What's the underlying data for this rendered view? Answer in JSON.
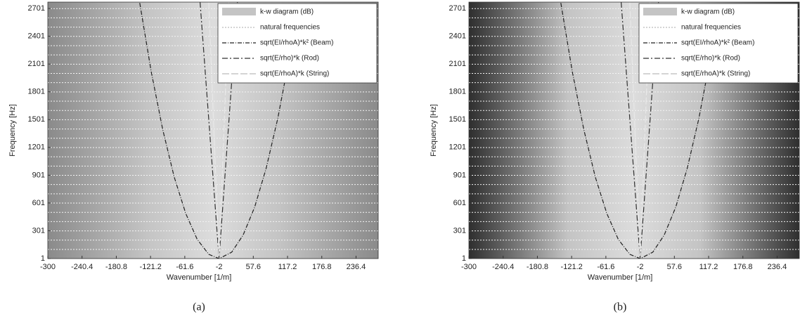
{
  "chart_data": [
    {
      "type": "kw",
      "caption": "(a)",
      "xlabel": "Wavenumber [1/m]",
      "ylabel": "Frequency [Hz]",
      "xlim": [
        -300,
        275
      ],
      "xticks": [
        -300,
        -240.4,
        -180.8,
        -121.2,
        -61.6,
        -2,
        57.6,
        117.2,
        176.8,
        236.4
      ],
      "ylim": [
        1,
        2770
      ],
      "yticks": [
        1,
        301,
        601,
        901,
        1201,
        1501,
        1801,
        2101,
        2401,
        2701
      ],
      "heatmap": {
        "name": "k-w diagram (dB)",
        "color": "#c4c4c4",
        "edge_color": "#8a8a8a"
      },
      "series": [
        {
          "name": "natural frequencies",
          "color": "#f4f4f4",
          "dash": "2 2",
          "values": [
            100,
            200,
            300,
            400,
            500,
            600,
            700,
            800,
            900,
            1000,
            1100,
            1200,
            1300,
            1400,
            1500,
            1600,
            1700,
            1800,
            1900,
            2000,
            2100,
            2200,
            2300,
            2400,
            2500,
            2600,
            2700
          ]
        },
        {
          "name": "sqrt(EI/rhoA)*k² (Beam)",
          "color": "#202020",
          "dash": "6 2 1 2",
          "x": [
            -140,
            -120,
            -100,
            -80,
            -60,
            -40,
            -20,
            -2,
            20,
            40,
            60,
            80,
            100,
            120,
            136
          ],
          "values": [
            2761,
            2019,
            1393,
            882,
            488,
            209,
            47,
            0,
            70,
            256,
            557,
            975,
            1509,
            2158,
            2761
          ]
        },
        {
          "name": "sqrt(E/rho)*k (Rod)",
          "color": "#303030",
          "dash": "8 3 2 3",
          "x": [
            -35,
            -2,
            30
          ],
          "values": [
            2770,
            0,
            2770
          ]
        },
        {
          "name": "sqrt(E/rhoA)*k (String)",
          "color": "#e8e8e8",
          "dash": "10 3",
          "x": [
            -20,
            -2,
            15
          ],
          "values": [
            2770,
            0,
            2770
          ]
        }
      ]
    },
    {
      "type": "kw",
      "caption": "(b)",
      "xlabel": "Wavenumber [1/m]",
      "ylabel": "Frequency [Hz]",
      "xlim": [
        -300,
        275
      ],
      "xticks": [
        -300,
        -240.4,
        -180.8,
        -121.2,
        -61.6,
        -2,
        57.6,
        117.2,
        176.8,
        236.4
      ],
      "ylim": [
        1,
        2770
      ],
      "yticks": [
        1,
        301,
        601,
        901,
        1201,
        1501,
        1801,
        2101,
        2401,
        2701
      ],
      "heatmap": {
        "name": "k-w diagram (dB)",
        "color": "#c4c4c4",
        "edge_color": "#2e2e2e"
      },
      "series": [
        {
          "name": "natural frequencies",
          "color": "#f4f4f4",
          "dash": "2 2",
          "values": [
            100,
            200,
            300,
            400,
            500,
            600,
            700,
            800,
            900,
            1000,
            1100,
            1200,
            1300,
            1400,
            1500,
            1600,
            1700,
            1800,
            1900,
            2000,
            2100,
            2200,
            2300,
            2400,
            2500,
            2600,
            2700
          ]
        },
        {
          "name": "sqrt(EI/rhoA)*k² (Beam)",
          "color": "#202020",
          "dash": "6 2 1 2",
          "x": [
            -140,
            -120,
            -100,
            -80,
            -60,
            -40,
            -20,
            -2,
            20,
            40,
            60,
            80,
            100,
            120,
            136
          ],
          "values": [
            2761,
            2019,
            1393,
            882,
            488,
            209,
            47,
            0,
            70,
            256,
            557,
            975,
            1509,
            2158,
            2761
          ]
        },
        {
          "name": "sqrt(E/rho)*k (Rod)",
          "color": "#303030",
          "dash": "8 3 2 3",
          "x": [
            -35,
            -2,
            30
          ],
          "values": [
            2770,
            0,
            2770
          ]
        },
        {
          "name": "sqrt(E/rhoA)*k (String)",
          "color": "#e8e8e8",
          "dash": "10 3",
          "x": [
            -20,
            -2,
            15
          ],
          "values": [
            2770,
            0,
            2770
          ]
        }
      ]
    }
  ]
}
